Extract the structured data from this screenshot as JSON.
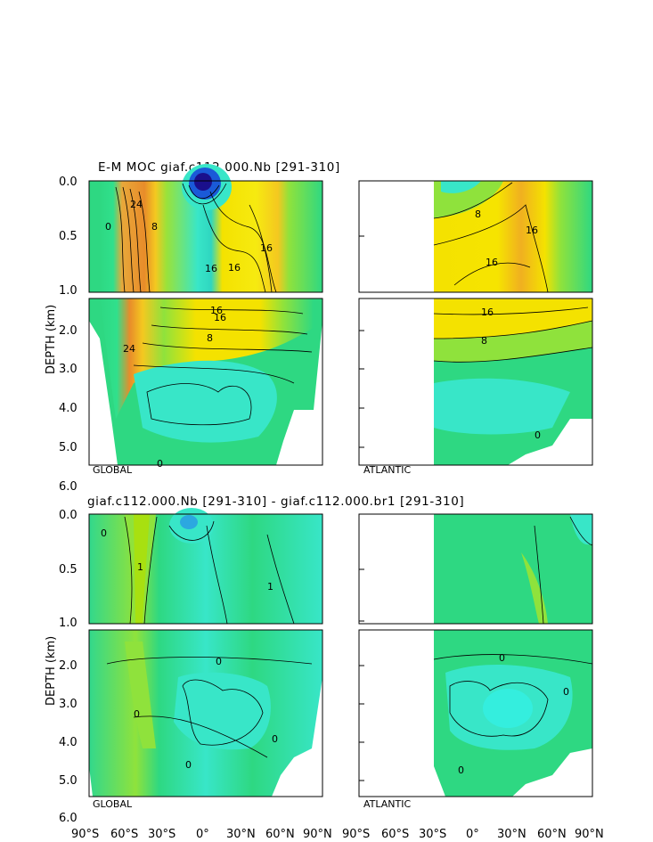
{
  "figure": {
    "top_title": "E-M MOC   giaf.c112.000.Nb  [291-310]",
    "bottom_title": "giaf.c112.000.Nb  [291-310]  -  giaf.c112.000.br1  [291-310]",
    "ylabel": "DEPTH (km)",
    "upper_depth_ticks": [
      "0.0",
      "0.5",
      "1.0"
    ],
    "lower_depth_ticks": [
      "2.0",
      "3.0",
      "4.0",
      "5.0",
      "6.0"
    ],
    "lat_ticks": [
      "90°S",
      "60°S",
      "30°S",
      "0°",
      "30°N",
      "60°N",
      "90°N"
    ],
    "region_global": "GLOBAL",
    "region_atlantic": "ATLANTIC"
  },
  "chart_data": [
    {
      "type": "heatmap",
      "title": "E-M MOC   giaf.c112.000.Nb  [291-310]",
      "region": "GLOBAL",
      "ylabel": "DEPTH (km)",
      "xlim": [
        -90,
        90
      ],
      "ylim": [
        0,
        6
      ],
      "x_units": "degrees latitude",
      "contour_labels": [
        "24",
        "16",
        "8",
        "0",
        "16",
        "16",
        "16",
        "24",
        "16",
        "8",
        "0"
      ],
      "colors": {
        "strong_positive": "#e88c2a",
        "positive": "#f4e200",
        "weak_positive": "#8fe23c",
        "zero": "#2ed882",
        "negative": "#38e6c8",
        "strong_negative": "#1a0f8c"
      }
    },
    {
      "type": "heatmap",
      "region": "ATLANTIC",
      "xlim": [
        -30,
        90
      ],
      "ylim": [
        0,
        6
      ],
      "x_units": "degrees latitude",
      "contour_labels": [
        "8",
        "16",
        "16",
        "16",
        "8",
        "0"
      ]
    },
    {
      "type": "heatmap",
      "title": "giaf.c112.000.Nb  [291-310]  -  giaf.c112.000.br1  [291-310]",
      "region": "GLOBAL",
      "xlim": [
        -90,
        90
      ],
      "ylim": [
        0,
        6
      ],
      "contour_labels": [
        "1",
        "1",
        "0",
        "0",
        "0",
        "0",
        "0"
      ]
    },
    {
      "type": "heatmap",
      "region": "ATLANTIC",
      "xlim": [
        -30,
        90
      ],
      "ylim": [
        0,
        6
      ],
      "contour_labels": [
        "0",
        "0",
        "0"
      ]
    }
  ]
}
